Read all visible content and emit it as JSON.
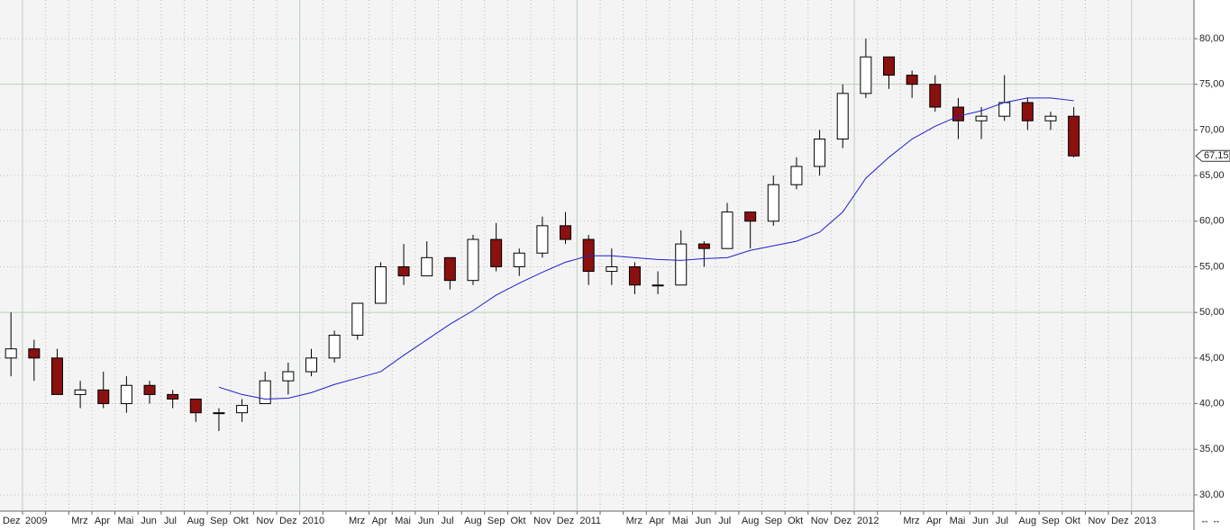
{
  "chart_data": {
    "type": "candlestick",
    "categories": [
      "Dez",
      "2009",
      null,
      "Mrz",
      "Apr",
      "Mai",
      "Jun",
      "Jul",
      "Aug",
      "Sep",
      "Okt",
      "Nov",
      "Dez",
      "2010",
      null,
      "Mrz",
      "Apr",
      "Mai",
      "Jun",
      "Jul",
      "Aug",
      "Sep",
      "Okt",
      "Nov",
      "Dez",
      "2011",
      null,
      "Mrz",
      "Apr",
      "Mai",
      "Jun",
      "Jul",
      "Aug",
      "Sep",
      "Okt",
      "Nov",
      "Dez",
      "2012",
      null,
      "Mrz",
      "Apr",
      "Mai",
      "Jun",
      "Jul",
      "Aug",
      "Sep",
      "Okt",
      "Nov",
      "Dez",
      "2013"
    ],
    "open": [
      45,
      46,
      45,
      41,
      41.5,
      40,
      42,
      41,
      40.5,
      39,
      39,
      40,
      42.5,
      43.5,
      45,
      47.5,
      51,
      55,
      54,
      56,
      53.5,
      58,
      55,
      56.5,
      59.5,
      58,
      54.5,
      55,
      53,
      53,
      57.5,
      57,
      61,
      60,
      64,
      66,
      69,
      74,
      78,
      76,
      75,
      72.5,
      71,
      71.5,
      73,
      71,
      71.5,
      null,
      null,
      null
    ],
    "high": [
      50,
      47,
      46,
      42.5,
      43.5,
      43,
      42.5,
      41.5,
      40.5,
      39.5,
      40.5,
      43.5,
      44.5,
      46,
      48,
      51,
      55.5,
      57.5,
      57.8,
      56,
      58.5,
      59.8,
      57,
      60.5,
      61,
      58.5,
      57,
      55.5,
      54.5,
      59,
      57.8,
      62,
      61,
      65,
      67,
      70,
      75,
      80,
      78,
      76.5,
      76,
      73.5,
      72.5,
      76,
      73.5,
      72,
      72.5,
      null,
      null,
      null
    ],
    "low": [
      43,
      42.5,
      41,
      39.5,
      39.5,
      39,
      40,
      39.5,
      38,
      37,
      38,
      40,
      41,
      43,
      44.5,
      47,
      51,
      53,
      54,
      52.5,
      53,
      54.5,
      54,
      56,
      57.5,
      53,
      53,
      52,
      52,
      53,
      55,
      57,
      57,
      59.5,
      63.5,
      65,
      68,
      73.5,
      74.5,
      73.5,
      72,
      69,
      69,
      71,
      70,
      70,
      67,
      null,
      null,
      null
    ],
    "close": [
      46,
      45,
      41,
      41.5,
      40,
      42,
      41,
      40.5,
      39,
      39,
      39.8,
      42.5,
      43.5,
      45,
      47.5,
      51,
      55,
      54,
      56,
      53.5,
      58,
      55,
      56.5,
      59.5,
      58,
      54.5,
      55,
      53,
      53,
      57.5,
      57,
      61,
      60,
      64,
      66,
      69,
      74,
      78,
      76,
      75,
      72.5,
      71,
      71.5,
      73,
      71,
      71.5,
      67.15,
      null,
      null,
      null
    ],
    "series": [
      {
        "color": "#1f1fd0",
        "values": [
          null,
          null,
          null,
          null,
          null,
          null,
          null,
          null,
          null,
          41.8,
          41,
          40.5,
          40.6,
          41.2,
          42.1,
          42.8,
          43.5,
          45.3,
          47,
          48.7,
          50.2,
          51.9,
          53.2,
          54.4,
          55.5,
          56.2,
          56.2,
          56,
          55.8,
          55.7,
          55.9,
          56,
          56.8,
          57.3,
          57.8,
          58.8,
          61,
          64.7,
          67,
          69,
          70.4,
          71.5,
          72.1,
          73,
          73.5,
          73.5,
          73.2,
          null,
          null,
          null
        ]
      }
    ],
    "up_color": "#ffffff",
    "down_color": "#8b1010",
    "last_price": {
      "value": 67.15,
      "label": "67,15"
    },
    "ylim": [
      28.22,
      84.24
    ],
    "yticks": [
      {
        "value": 30,
        "label": "30,00"
      },
      {
        "value": 35,
        "label": "35,00"
      },
      {
        "value": 40,
        "label": "40,00"
      },
      {
        "value": 45,
        "label": "45,00"
      },
      {
        "value": 50,
        "label": "50,00"
      },
      {
        "value": 55,
        "label": "55,00"
      },
      {
        "value": 60,
        "label": "60,00"
      },
      {
        "value": 65,
        "label": "65,00"
      },
      {
        "value": 70,
        "label": "70,00"
      },
      {
        "value": 75,
        "label": "75,00"
      },
      {
        "value": 80,
        "label": "80,00"
      }
    ],
    "solid_ygrid": [
      50,
      75
    ],
    "grid": true
  }
}
